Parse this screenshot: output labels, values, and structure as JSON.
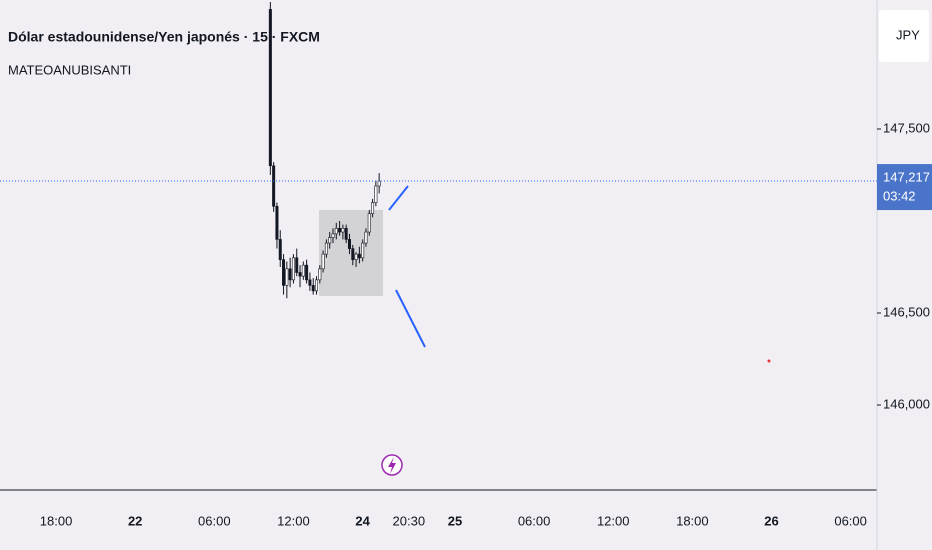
{
  "chart_data": {
    "type": "candlestick",
    "title": "Dólar estadounidense/Yen japonés · 15 · FXCM",
    "subtitle": "MATEOANUBISANTI",
    "currency": "JPY",
    "x": [
      82,
      83,
      84,
      85,
      86,
      87,
      88,
      89,
      90,
      91,
      92,
      93,
      94,
      95,
      96,
      97,
      98,
      99,
      100,
      101,
      102,
      103,
      104,
      105,
      106,
      107,
      108,
      109,
      110,
      111,
      112,
      113,
      114,
      115
    ],
    "open": [
      148150,
      147300,
      147080,
      146900,
      146790,
      146650,
      146740,
      146680,
      146800,
      146720,
      146700,
      146760,
      146680,
      146650,
      146620,
      146680,
      146740,
      146820,
      146880,
      146910,
      146930,
      146960,
      146940,
      146960,
      146900,
      146850,
      146790,
      146820,
      146800,
      146880,
      146940,
      147040,
      147100,
      147190
    ],
    "high": [
      148190,
      147320,
      147100,
      146950,
      146820,
      146780,
      146800,
      146820,
      146850,
      146760,
      146780,
      146790,
      146720,
      146690,
      146700,
      146760,
      146840,
      146900,
      146940,
      146960,
      146990,
      147000,
      146980,
      146980,
      146930,
      146870,
      146830,
      146860,
      146900,
      146960,
      147060,
      147120,
      147220,
      147260
    ],
    "low": [
      147250,
      147050,
      146850,
      146750,
      146600,
      146580,
      146640,
      146660,
      146700,
      146640,
      146680,
      146660,
      146620,
      146600,
      146600,
      146660,
      146720,
      146800,
      146850,
      146880,
      146900,
      146920,
      146900,
      146880,
      146820,
      146760,
      146750,
      146770,
      146780,
      146860,
      146920,
      147020,
      147080,
      147150
    ],
    "close": [
      147300,
      147080,
      146900,
      146790,
      146650,
      146740,
      146680,
      146800,
      146720,
      146700,
      146760,
      146680,
      146650,
      146620,
      146680,
      146740,
      146820,
      146880,
      146910,
      146930,
      146960,
      146940,
      146960,
      146900,
      146850,
      146790,
      146820,
      146800,
      146880,
      146940,
      147040,
      147100,
      147190,
      147217
    ],
    "up_color": "#ffffff",
    "down_color": "#131722",
    "outline_color": "#131722",
    "last_price": {
      "value": 147217,
      "label": "147,217"
    },
    "countdown": "03:42",
    "ylim": [
      145538,
      148201
    ],
    "yticks": [
      {
        "value": 146000,
        "label": "146,000"
      },
      {
        "value": 146500,
        "label": "146,500"
      },
      {
        "value": 147500,
        "label": "147,500"
      }
    ],
    "xlim": [
      0,
      266
    ],
    "xticks": [
      {
        "value": 17,
        "label": "18:00"
      },
      {
        "value": 41,
        "label": "22"
      },
      {
        "value": 65,
        "label": "06:00"
      },
      {
        "value": 89,
        "label": "12:00"
      },
      {
        "value": 110,
        "label": "24"
      },
      {
        "value": 124,
        "label": "20:30"
      },
      {
        "value": 138,
        "label": "25"
      },
      {
        "value": 162,
        "label": "06:00"
      },
      {
        "value": 186,
        "label": "12:00"
      },
      {
        "value": 210,
        "label": "18:00"
      },
      {
        "value": 234,
        "label": "26"
      },
      {
        "value": 258,
        "label": "06:00"
      }
    ]
  }
}
